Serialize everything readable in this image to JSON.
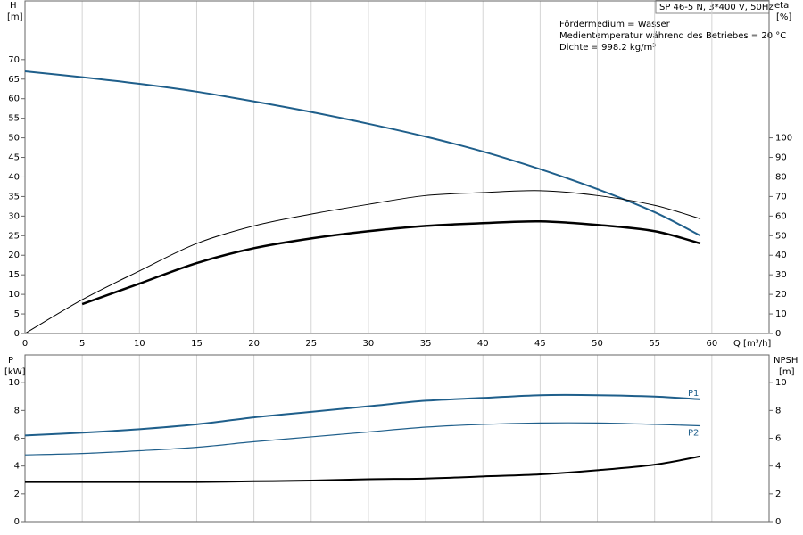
{
  "chart_data": [
    {
      "type": "line",
      "title": "SP 46-5 N, 3*400 V, 50Hz",
      "notes": [
        "Fördermedium = Wasser",
        "Medientemperatur während des Betriebes = 20 °C",
        "Dichte = 998.2 kg/m³"
      ],
      "ylabel": "H",
      "ylabel_unit": "[m]",
      "y2label": "eta",
      "y2label_unit": "[%]",
      "xlabel": "Q [m³/h]",
      "x": [
        0,
        5,
        10,
        15,
        20,
        25,
        30,
        35,
        40,
        45,
        50,
        55,
        59
      ],
      "xlim": [
        0,
        65
      ],
      "xticks": [
        0,
        5,
        10,
        15,
        20,
        25,
        30,
        35,
        40,
        45,
        50,
        55,
        60
      ],
      "ylim": [
        0,
        85
      ],
      "yticks": [
        0,
        5,
        10,
        15,
        20,
        25,
        30,
        35,
        40,
        45,
        50,
        55,
        60,
        65,
        70
      ],
      "y2lim": [
        0,
        170
      ],
      "y2ticks": [
        0,
        10,
        20,
        30,
        40,
        50,
        60,
        70,
        80,
        90,
        100
      ],
      "grid": true,
      "series": [
        {
          "color": "#1f5f8b",
          "width": 2,
          "values": [
            67,
            65.5,
            63.8,
            61.8,
            59.3,
            56.6,
            53.6,
            50.3,
            46.5,
            42,
            36.9,
            31,
            25
          ]
        },
        {
          "color": "#000000",
          "width": 1,
          "axis": "y2",
          "values": [
            0,
            17.3,
            32,
            46,
            55,
            61,
            66,
            70.5,
            72,
            73,
            70.5,
            65.5,
            58.6
          ]
        },
        {
          "color": "#000000",
          "width": 2.5,
          "axis": "y2",
          "values": [
            null,
            15,
            25.5,
            36,
            43.6,
            48.6,
            52.3,
            55,
            56.4,
            57.3,
            55.5,
            52.3,
            46
          ]
        }
      ]
    },
    {
      "type": "line",
      "ylabel": "P",
      "ylabel_unit": "[kW]",
      "y2label": "NPSH",
      "y2label_unit": "[m]",
      "x": [
        0,
        5,
        10,
        15,
        20,
        25,
        30,
        35,
        40,
        45,
        50,
        55,
        59
      ],
      "xlim": [
        0,
        65
      ],
      "xticks": [
        0,
        5,
        10,
        15,
        20,
        25,
        30,
        35,
        40,
        45,
        50,
        55,
        60
      ],
      "ylim": [
        0,
        12
      ],
      "yticks": [
        0,
        2,
        4,
        6,
        8,
        10
      ],
      "y2lim": [
        0,
        12
      ],
      "y2ticks": [
        0,
        2,
        4,
        6,
        8,
        10
      ],
      "grid": true,
      "series": [
        {
          "name": "P1",
          "color": "#1f5f8b",
          "width": 2,
          "values": [
            6.2,
            6.4,
            6.65,
            7.0,
            7.5,
            7.9,
            8.3,
            8.7,
            8.9,
            9.1,
            9.1,
            9.0,
            8.8
          ]
        },
        {
          "name": "P2",
          "color": "#1f5f8b",
          "width": 1.2,
          "values": [
            4.8,
            4.9,
            5.1,
            5.35,
            5.75,
            6.1,
            6.45,
            6.8,
            7.0,
            7.1,
            7.1,
            7.0,
            6.9
          ]
        },
        {
          "color": "#000000",
          "width": 2,
          "axis": "y2",
          "values": [
            2.85,
            2.85,
            2.85,
            2.85,
            2.9,
            2.95,
            3.05,
            3.1,
            3.25,
            3.4,
            3.7,
            4.1,
            4.7
          ]
        }
      ]
    }
  ]
}
